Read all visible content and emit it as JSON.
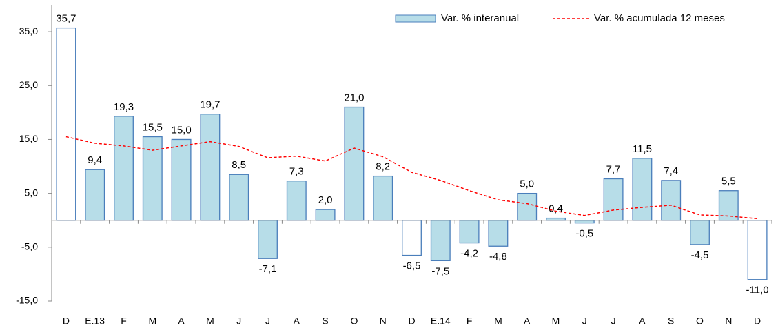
{
  "chart_data": {
    "type": "bar",
    "categories": [
      "D",
      "E.13",
      "F",
      "M",
      "A",
      "M",
      "J",
      "J",
      "A",
      "S",
      "O",
      "N",
      "D",
      "E.14",
      "F",
      "M",
      "A",
      "M",
      "J",
      "J",
      "A",
      "S",
      "O",
      "N",
      "D"
    ],
    "series": [
      {
        "name": "Var. % interanual",
        "type": "bar",
        "color": "#b7dde8",
        "edgecolor": "#4a7ebb",
        "colors": [
          "#ffffff",
          "#b7dde8",
          "#b7dde8",
          "#b7dde8",
          "#b7dde8",
          "#b7dde8",
          "#b7dde8",
          "#b7dde8",
          "#b7dde8",
          "#b7dde8",
          "#b7dde8",
          "#b7dde8",
          "#ffffff",
          "#b7dde8",
          "#b7dde8",
          "#b7dde8",
          "#b7dde8",
          "#b7dde8",
          "#b7dde8",
          "#b7dde8",
          "#b7dde8",
          "#b7dde8",
          "#b7dde8",
          "#b7dde8",
          "#ffffff"
        ],
        "values": [
          35.7,
          9.4,
          19.3,
          15.5,
          15.0,
          19.7,
          8.5,
          -7.1,
          7.3,
          2.0,
          21.0,
          8.2,
          -6.5,
          -7.5,
          -4.2,
          -4.8,
          5.0,
          0.4,
          -0.5,
          7.7,
          11.5,
          7.4,
          -4.5,
          5.5,
          -11.0
        ],
        "value_labels": [
          "35,7",
          "9,4",
          "19,3",
          "15,5",
          "15,0",
          "19,7",
          "8,5",
          "-7,1",
          "7,3",
          "2,0",
          "21,0",
          "8,2",
          "-6,5",
          "-7,5",
          "-4,2",
          "-4,8",
          "5,0",
          "0,4",
          "-0,5",
          "7,7",
          "11,5",
          "7,4",
          "-4,5",
          "5,5",
          "-11,0"
        ]
      },
      {
        "name": "Var. % acumulada 12 meses",
        "type": "line",
        "color": "#ff0000",
        "linestyle": "dashed",
        "values": [
          15.5,
          14.3,
          13.8,
          13.0,
          13.8,
          14.6,
          13.7,
          11.6,
          11.9,
          11.0,
          13.4,
          11.8,
          8.9,
          7.4,
          5.5,
          3.8,
          3.1,
          1.7,
          0.9,
          1.9,
          2.4,
          2.8,
          1.0,
          0.8,
          0.3
        ]
      }
    ],
    "ylim": [
      -15,
      40
    ],
    "yticks": [
      {
        "value": -15,
        "label": "-15,0"
      },
      {
        "value": -5,
        "label": "-5,0"
      },
      {
        "value": 5,
        "label": "5,0"
      },
      {
        "value": 15,
        "label": "15,0"
      },
      {
        "value": 25,
        "label": "25,0"
      },
      {
        "value": 35,
        "label": "35,0"
      }
    ],
    "legend": "upper right"
  }
}
